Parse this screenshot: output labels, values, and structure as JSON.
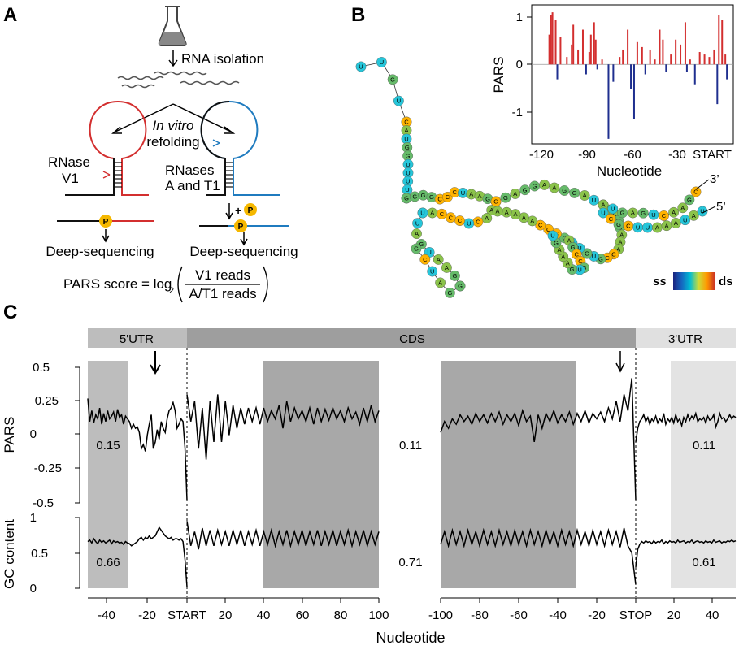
{
  "panel_a": {
    "label": "A",
    "step_isolation": "RNA isolation",
    "refold_line1": "In vitro",
    "refold_line2": "refolding",
    "v1_line1": "RNase",
    "v1_line2": "V1",
    "at1_line1": "RNases",
    "at1_line2": "A and T1",
    "plus_label": "+",
    "phosphate_label": "P",
    "seq_left": "Deep-sequencing",
    "seq_right": "Deep-sequencing",
    "formula_prefix": "PARS score = log",
    "formula_subscript": "2",
    "formula_numerator": "V1 reads",
    "formula_denominator": "A/T1 reads",
    "color_v1": "#d32f2f",
    "color_at1": "#1f7bbf"
  },
  "panel_b": {
    "label": "B",
    "end_3": "3’",
    "end_5": "5’",
    "legend_ss": "ss",
    "legend_ds": "ds",
    "structure_strands": [
      {
        "seq": "UUGUG"
      },
      {
        "seq": "CAUGGUUUUU"
      },
      {
        "seq": "GGGGCCCUAAGG"
      },
      {
        "seq": "AAACUCCCAA"
      },
      {
        "seq": "UUAGUAAGG"
      },
      {
        "seq": "GGAUCG"
      },
      {
        "seq": "CGAGGAAGGAUC"
      },
      {
        "seq": "AAAGGAAACCGUU"
      },
      {
        "seq": "GUUGCCCAAAAA"
      },
      {
        "seq": "AUGAGUCAAGC"
      },
      {
        "seq": "UCGCUUAAAUAU"
      },
      {
        "seq": "AGCCGUGAAAGU"
      }
    ],
    "inset_chart": {
      "type": "bar",
      "title": "",
      "xlabel": "Nucleotide",
      "ylabel": "PARS",
      "x_ticks": [
        "-120",
        "-90",
        "-60",
        "-30",
        "START"
      ],
      "y_ticks": [
        "1",
        "0",
        "-1"
      ],
      "xlim": [
        -126,
        0
      ],
      "ylim": [
        -1.6,
        1.2
      ],
      "positive_color": "#d32f2f",
      "negative_color": "#1f2f8f"
    }
  },
  "chart_data": [
    {
      "type": "bar",
      "title": "",
      "xlabel": "Nucleotide",
      "ylabel": "PARS",
      "x_tick_labels": [
        "-120",
        "-90",
        "-60",
        "-30",
        "START"
      ],
      "y_tick_labels": [
        "1",
        "0",
        "-1"
      ],
      "xlim": [
        -126,
        0
      ],
      "ylim": [
        -1.6,
        1.2
      ],
      "series": [
        {
          "x": [
            -115,
            -114,
            -113,
            -111,
            -110,
            -108,
            -104,
            -101,
            -100,
            -97,
            -94,
            -92,
            -90,
            -89,
            -87,
            -86,
            -85,
            -82,
            -78,
            -75,
            -71,
            -69,
            -66,
            -64,
            -62,
            -60,
            -57,
            -55,
            -52,
            -49,
            -46,
            -44,
            -42,
            -39,
            -36,
            -33,
            -30,
            -29,
            -27,
            -24,
            -21,
            -18,
            -15,
            -12,
            -10,
            -9,
            -7,
            -5,
            -4
          ],
          "values": [
            0.6,
            1.0,
            1.05,
            0.9,
            -0.3,
            0.55,
            0.15,
            0.4,
            0.8,
            0.3,
            0.7,
            -0.2,
            0.25,
            0.6,
            0.85,
            0.5,
            -0.1,
            0.1,
            -1.5,
            -0.35,
            0.15,
            0.3,
            0.7,
            -0.5,
            -1.1,
            0.45,
            0.35,
            -0.2,
            0.3,
            0.1,
            0.7,
            0.5,
            -0.15,
            0.2,
            0.5,
            0.4,
            0.85,
            -0.15,
            0.1,
            -0.4,
            0.25,
            0.2,
            0.15,
            0.3,
            -0.8,
            1.0,
            0.9,
            0.2,
            -0.3
          ]
        }
      ]
    },
    {
      "type": "line",
      "title": "",
      "xlabel": "Nucleotide",
      "ylabel": "PARS",
      "ylim": [
        -0.5,
        0.5
      ],
      "y_tick_labels": [
        "0.5",
        "0.25",
        "0",
        "-0.25",
        "-0.5"
      ],
      "x_tick_labels": [
        "-40",
        "-20",
        "START",
        "20",
        "40",
        "60",
        "80",
        "100",
        "-100",
        "-80",
        "-60",
        "-40",
        "-20",
        "STOP",
        "20",
        "40"
      ],
      "regions": [
        "5'UTR",
        "CDS",
        "3'UTR"
      ],
      "annotations": [
        "0.15",
        "0.11",
        "0.11"
      ],
      "segments": [
        {
          "region": "5'UTR",
          "x_range": [
            -50,
            0
          ],
          "values": [
            0.27,
            0.1,
            0.18,
            0.09,
            0.15,
            0.12,
            0.2,
            0.08,
            0.16,
            0.1,
            0.18,
            0.12,
            0.14,
            0.17,
            0.1,
            0.19,
            0.13,
            0.15,
            0.08,
            0.14,
            0.12,
            0.1,
            0.05,
            0.08,
            0.05,
            0.06,
            0.02,
            -0.1,
            -0.07,
            -0.12,
            0.0,
            0.08,
            0.15,
            -0.1,
            -0.05,
            0.04,
            -0.03,
            0.1,
            0.05,
            0.02,
            0.12,
            0.18,
            0.2,
            0.24,
            0.18,
            0.05,
            0.08,
            0.12,
            0.1,
            -0.1,
            -0.48
          ]
        },
        {
          "region": "CDS-start",
          "x_range": [
            0,
            100
          ],
          "values": [
            0.3,
            0.1,
            0.25,
            -0.1,
            0.2,
            -0.18,
            0.25,
            -0.05,
            0.3,
            -0.05,
            0.25,
            0.0,
            0.22,
            0.05,
            0.2,
            0.08,
            0.2,
            0.1,
            0.2,
            0.08,
            0.2,
            0.1,
            0.18,
            0.12,
            0.22,
            0.05,
            0.25,
            0.1,
            0.2,
            0.12,
            0.18,
            0.1,
            0.2,
            0.08,
            0.2,
            0.1,
            0.19,
            0.11,
            0.2,
            0.12,
            0.18,
            0.1,
            0.2,
            0.12,
            0.17,
            0.08,
            0.2,
            0.1,
            0.22,
            0.1,
            0.18
          ]
        },
        {
          "region": "CDS-end",
          "x_range": [
            -100,
            0
          ],
          "values": [
            0.02,
            0.1,
            0.05,
            0.12,
            0.08,
            0.15,
            0.1,
            0.14,
            0.08,
            0.16,
            0.1,
            0.15,
            0.09,
            0.16,
            0.1,
            0.17,
            0.08,
            0.15,
            0.1,
            0.16,
            0.07,
            0.18,
            0.1,
            0.14,
            -0.05,
            0.15,
            0.05,
            0.16,
            0.1,
            0.18,
            0.09,
            0.15,
            0.1,
            0.17,
            0.08,
            0.16,
            0.1,
            0.18,
            0.09,
            0.16,
            0.12,
            0.17,
            0.1,
            0.2,
            0.12,
            0.25,
            0.1,
            0.3,
            0.18,
            0.42,
            -0.48
          ]
        },
        {
          "region": "3'UTR",
          "x_range": [
            0,
            50
          ],
          "values": [
            -0.05,
            0.05,
            0.1,
            0.12,
            0.15,
            0.1,
            0.13,
            0.08,
            0.12,
            0.1,
            0.14,
            0.09,
            0.12,
            0.1,
            0.16,
            0.08,
            0.12,
            0.1,
            0.13,
            0.09,
            0.15,
            0.1,
            0.12,
            0.07,
            0.13,
            0.1,
            0.15,
            0.11,
            0.14,
            0.12,
            0.16,
            0.1,
            0.12,
            0.11,
            0.13,
            0.09,
            0.14,
            0.11,
            0.12,
            0.15,
            0.06,
            0.1,
            0.16,
            0.12,
            0.13,
            0.1,
            0.12,
            0.15,
            0.12,
            0.14,
            0.13
          ]
        }
      ]
    },
    {
      "type": "line",
      "title": "",
      "xlabel": "Nucleotide",
      "ylabel": "GC content",
      "ylim": [
        0,
        1
      ],
      "y_tick_labels": [
        "1",
        "0.5",
        "0"
      ],
      "x_tick_labels": [
        "-40",
        "-20",
        "START",
        "20",
        "40",
        "60",
        "80",
        "100",
        "-100",
        "-80",
        "-60",
        "-40",
        "-20",
        "STOP",
        "20",
        "40"
      ],
      "annotations": [
        "0.66",
        "0.71",
        "0.61"
      ],
      "segments": [
        {
          "region": "5'UTR",
          "x_range": [
            -50,
            0
          ],
          "values": [
            0.66,
            0.68,
            0.64,
            0.7,
            0.66,
            0.63,
            0.68,
            0.65,
            0.67,
            0.64,
            0.66,
            0.68,
            0.63,
            0.67,
            0.65,
            0.66,
            0.64,
            0.65,
            0.62,
            0.66,
            0.64,
            0.63,
            0.6,
            0.62,
            0.64,
            0.66,
            0.7,
            0.72,
            0.68,
            0.72,
            0.7,
            0.74,
            0.7,
            0.72,
            0.74,
            0.8,
            0.86,
            0.82,
            0.78,
            0.74,
            0.72,
            0.7,
            0.72,
            0.68,
            0.7,
            0.7,
            0.68,
            0.7,
            0.66,
            0.4,
            0.02
          ]
        },
        {
          "region": "CDS-start",
          "x_range": [
            0,
            100
          ],
          "values": [
            0.95,
            0.6,
            0.8,
            0.55,
            0.85,
            0.6,
            0.82,
            0.6,
            0.82,
            0.62,
            0.8,
            0.6,
            0.82,
            0.62,
            0.82,
            0.6,
            0.8,
            0.62,
            0.82,
            0.6,
            0.8,
            0.62,
            0.82,
            0.6,
            0.8,
            0.62,
            0.82,
            0.6,
            0.8,
            0.62,
            0.82,
            0.6,
            0.8,
            0.62,
            0.82,
            0.6,
            0.8,
            0.62,
            0.82,
            0.6,
            0.8,
            0.62,
            0.82,
            0.6,
            0.8,
            0.62,
            0.82,
            0.6,
            0.8,
            0.62,
            0.8
          ]
        },
        {
          "region": "CDS-end",
          "x_range": [
            -100,
            0
          ],
          "values": [
            0.62,
            0.8,
            0.6,
            0.82,
            0.62,
            0.8,
            0.6,
            0.82,
            0.62,
            0.8,
            0.6,
            0.82,
            0.62,
            0.8,
            0.6,
            0.82,
            0.62,
            0.8,
            0.6,
            0.82,
            0.62,
            0.8,
            0.6,
            0.82,
            0.62,
            0.8,
            0.6,
            0.82,
            0.62,
            0.8,
            0.6,
            0.82,
            0.62,
            0.8,
            0.6,
            0.82,
            0.62,
            0.8,
            0.6,
            0.82,
            0.62,
            0.8,
            0.6,
            0.82,
            0.62,
            0.8,
            0.58,
            0.85,
            0.6,
            0.5,
            0.05
          ]
        },
        {
          "region": "3'UTR",
          "x_range": [
            0,
            50
          ],
          "values": [
            0.3,
            0.55,
            0.62,
            0.66,
            0.64,
            0.67,
            0.65,
            0.66,
            0.63,
            0.67,
            0.64,
            0.66,
            0.65,
            0.68,
            0.63,
            0.66,
            0.64,
            0.67,
            0.65,
            0.66,
            0.64,
            0.68,
            0.65,
            0.66,
            0.67,
            0.64,
            0.66,
            0.65,
            0.68,
            0.64,
            0.66,
            0.67,
            0.65,
            0.66,
            0.64,
            0.67,
            0.65,
            0.66,
            0.64,
            0.68,
            0.65,
            0.66,
            0.67,
            0.64,
            0.66,
            0.65,
            0.67,
            0.66,
            0.68,
            0.66,
            0.67
          ]
        }
      ]
    }
  ],
  "panel_c": {
    "label": "C",
    "region_5utr": "5'UTR",
    "region_cds": "CDS",
    "region_3utr": "3'UTR",
    "pars_ylabel": "PARS",
    "gc_ylabel": "GC content",
    "xlabel": "Nucleotide",
    "pars_y_ticks": [
      "0.5",
      "0.25",
      "0",
      "-0.25",
      "-0.5"
    ],
    "gc_y_ticks": [
      "1",
      "0.5",
      "0"
    ],
    "x_ticks_left": [
      "-40",
      "-20",
      "START",
      "20",
      "40",
      "60",
      "80",
      "100"
    ],
    "x_ticks_right": [
      "-100",
      "-80",
      "-60",
      "-40",
      "-20",
      "STOP",
      "20",
      "40"
    ],
    "pars_avg": [
      "0.15",
      "0.11",
      "0.11"
    ],
    "gc_avg": [
      "0.66",
      "0.71",
      "0.61"
    ]
  }
}
